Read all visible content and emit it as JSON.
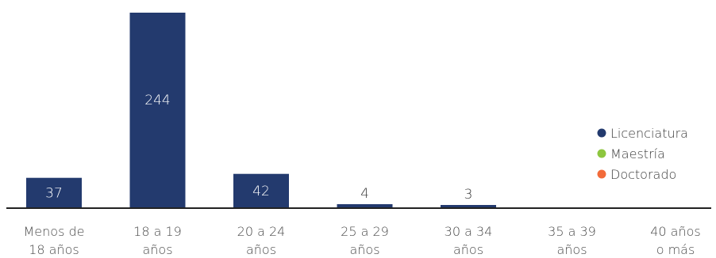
{
  "chart_data": {
    "type": "bar",
    "categories": [
      [
        "Menos de",
        "18 años"
      ],
      [
        "18 a 19",
        "años"
      ],
      [
        "20 a 24",
        "años"
      ],
      [
        "25 a 29",
        "años"
      ],
      [
        "30 a 34",
        "años"
      ],
      [
        "35 a 39",
        "años"
      ],
      [
        "40 años",
        "o más"
      ]
    ],
    "series": [
      {
        "name": "Licenciatura",
        "color": "#233a6e",
        "values": [
          37,
          244,
          42,
          4,
          3,
          null,
          null
        ]
      },
      {
        "name": "Maestría",
        "color": "#8dc63f",
        "values": [
          null,
          null,
          null,
          null,
          null,
          null,
          null
        ]
      },
      {
        "name": "Doctorado",
        "color": "#f26b3a",
        "values": [
          null,
          null,
          null,
          null,
          null,
          null,
          null
        ]
      }
    ],
    "data_labels": [
      "37",
      "244",
      "42",
      "4",
      "3",
      "",
      ""
    ],
    "ylim": [
      0,
      244
    ],
    "grid": false,
    "legend_position": "right",
    "title": "",
    "xlabel": "",
    "ylabel": ""
  }
}
